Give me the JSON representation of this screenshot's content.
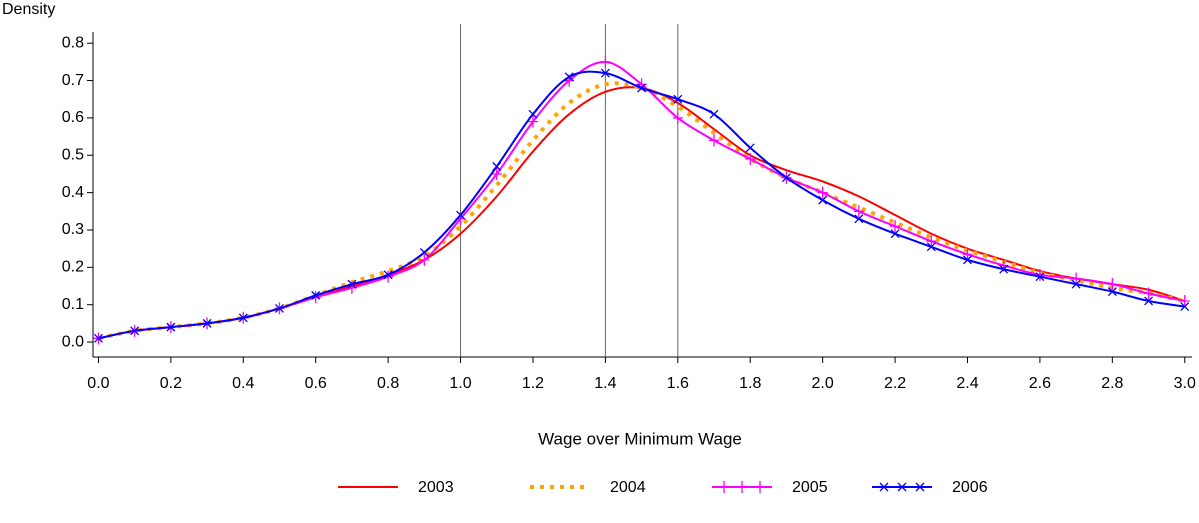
{
  "chart_data": {
    "type": "line",
    "y_label": "Density",
    "x_label": "Wage over Minimum Wage",
    "x": [
      0,
      0.1,
      0.2,
      0.3,
      0.4,
      0.5,
      0.6,
      0.7,
      0.8,
      0.9,
      1.0,
      1.1,
      1.2,
      1.3,
      1.4,
      1.5,
      1.6,
      1.7,
      1.8,
      1.9,
      2.0,
      2.1,
      2.2,
      2.3,
      2.4,
      2.5,
      2.6,
      2.7,
      2.8,
      2.9,
      3.0
    ],
    "series": [
      {
        "name": "2003",
        "color": "#ff0000",
        "style": "solid",
        "marker": "none",
        "values": [
          0.01,
          0.03,
          0.04,
          0.05,
          0.065,
          0.09,
          0.12,
          0.15,
          0.18,
          0.22,
          0.29,
          0.39,
          0.51,
          0.61,
          0.67,
          0.68,
          0.64,
          0.57,
          0.5,
          0.46,
          0.43,
          0.39,
          0.34,
          0.29,
          0.25,
          0.22,
          0.19,
          0.17,
          0.155,
          0.14,
          0.11
        ]
      },
      {
        "name": "2004",
        "color": "#ffa500",
        "style": "dotted",
        "marker": "none",
        "values": [
          0.01,
          0.03,
          0.04,
          0.05,
          0.065,
          0.09,
          0.125,
          0.16,
          0.19,
          0.23,
          0.31,
          0.42,
          0.54,
          0.64,
          0.69,
          0.68,
          0.63,
          0.56,
          0.49,
          0.44,
          0.4,
          0.36,
          0.32,
          0.28,
          0.245,
          0.215,
          0.185,
          0.165,
          0.145,
          0.13,
          0.11
        ]
      },
      {
        "name": "2005",
        "color": "#ff00ff",
        "style": "solid",
        "marker": "plus",
        "values": [
          0.01,
          0.03,
          0.04,
          0.05,
          0.065,
          0.09,
          0.12,
          0.145,
          0.175,
          0.22,
          0.33,
          0.45,
          0.59,
          0.7,
          0.75,
          0.69,
          0.6,
          0.54,
          0.49,
          0.44,
          0.4,
          0.35,
          0.31,
          0.27,
          0.235,
          0.205,
          0.18,
          0.17,
          0.155,
          0.13,
          0.11
        ]
      },
      {
        "name": "2006",
        "color": "#0000ff",
        "style": "solid",
        "marker": "x",
        "values": [
          0.01,
          0.03,
          0.04,
          0.05,
          0.065,
          0.09,
          0.125,
          0.155,
          0.18,
          0.24,
          0.34,
          0.47,
          0.61,
          0.71,
          0.72,
          0.68,
          0.65,
          0.61,
          0.52,
          0.44,
          0.38,
          0.33,
          0.29,
          0.255,
          0.22,
          0.195,
          0.175,
          0.155,
          0.135,
          0.11,
          0.095
        ]
      }
    ],
    "vlines": [
      1.0,
      1.4,
      1.6
    ],
    "xlim": [
      -0.015,
      3.02
    ],
    "ylim": [
      -0.04,
      0.83
    ],
    "xticks": [
      {
        "value": 0,
        "label": "0.0"
      },
      0.2,
      0.4,
      0.6,
      0.8,
      {
        "value": 1,
        "label": "1.0"
      },
      1.2,
      1.4,
      1.6,
      1.8,
      {
        "value": 2,
        "label": "2.0"
      },
      2.2,
      2.4,
      2.6,
      2.8,
      {
        "value": 3,
        "label": "3.0"
      }
    ],
    "yticks": [
      {
        "value": 0,
        "label": "0.0"
      },
      0.1,
      0.2,
      0.3,
      0.4,
      0.5,
      0.6,
      0.7,
      0.8
    ],
    "grid": false
  }
}
